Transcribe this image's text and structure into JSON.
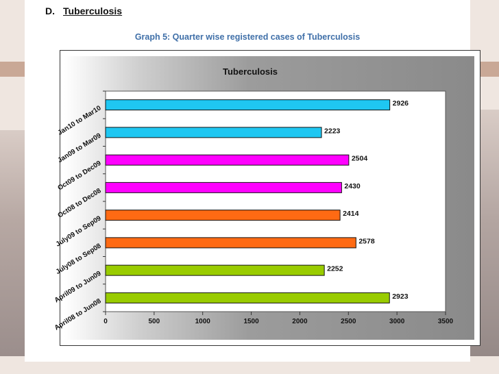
{
  "section": {
    "letter": "D.",
    "title": "Tuberculosis"
  },
  "graph_caption": "Graph 5: Quarter wise registered cases of Tuberculosis",
  "colors": {
    "cyan": "#1fc7f2",
    "magenta": "#ff00ff",
    "orange": "#ff6a13",
    "green": "#99cc00",
    "caption": "#3f6fa8"
  },
  "chart_data": {
    "type": "bar",
    "orientation": "horizontal",
    "title": "Tuberculosis",
    "xlabel": "",
    "ylabel": "",
    "xlim": [
      0,
      3500
    ],
    "x_ticks": [
      0,
      500,
      1000,
      1500,
      2000,
      2500,
      3000,
      3500
    ],
    "grid": false,
    "legend": "none",
    "categories": [
      "Jan10 to Mar10",
      "Jan09 to Mar09",
      "Oct09 to Dec09",
      "Oct08 to Dec08",
      "July09 to Sep09",
      "July08 to Sep08",
      "April09 to Jun09",
      "April08 to Jun08"
    ],
    "values": [
      2926,
      2223,
      2504,
      2430,
      2414,
      2578,
      2252,
      2923
    ],
    "bar_colors": [
      "#1fc7f2",
      "#1fc7f2",
      "#ff00ff",
      "#ff00ff",
      "#ff6a13",
      "#ff6a13",
      "#99cc00",
      "#99cc00"
    ]
  }
}
